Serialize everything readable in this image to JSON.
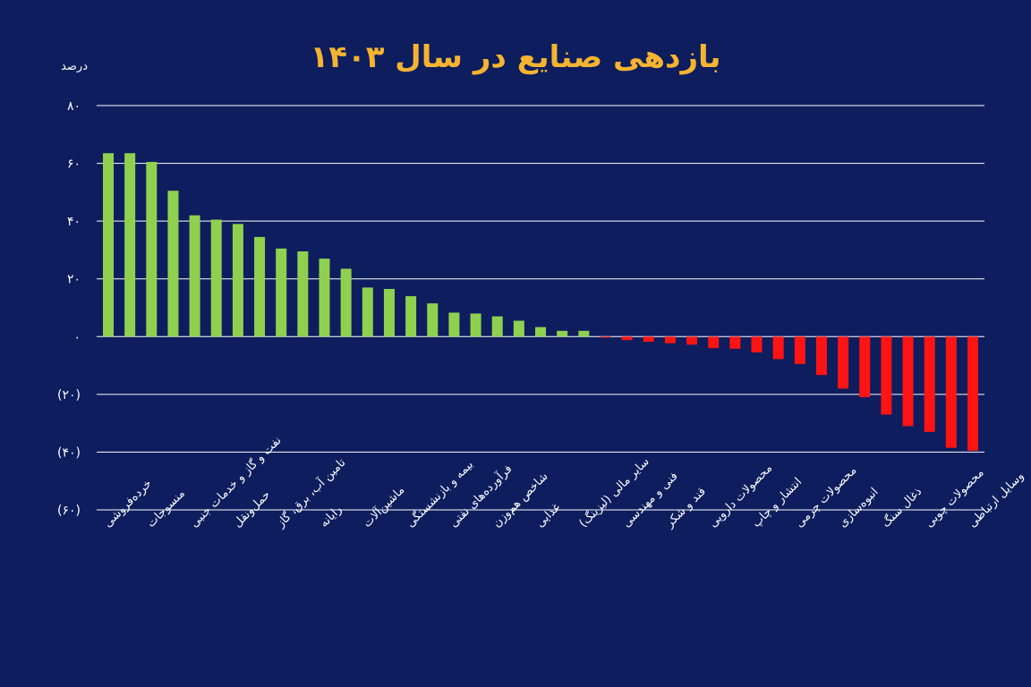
{
  "colors": {
    "background": "#0d1d5e",
    "title": "#f5b430",
    "positive_bar": "#8fd14f",
    "negative_bar": "#ff1414",
    "grid": "#ffffff",
    "text": "#ffffff"
  },
  "chart_data": {
    "type": "bar",
    "title": "بازدهی صنایع در سال ۱۴۰۳",
    "ylabel": "درصد",
    "xlabel": "",
    "ylim": [
      -60,
      80
    ],
    "grid": true,
    "ytick_values": [
      80,
      60,
      40,
      20,
      0,
      -20,
      -40,
      -60
    ],
    "ytick_labels": [
      "۸۰",
      "۶۰",
      "۴۰",
      "۲۰",
      "۰",
      "(۲۰)",
      "(۴۰)",
      "(۶۰)"
    ],
    "labeled_categories": [
      "خرده‌فروشی",
      "منسوجات",
      "نفت و گاز و خدمات جنبی",
      "حمل‌ونقل",
      "تامین آب، برق، گاز",
      "رایانه",
      "ماشین‌آلات",
      "بیمه و بازنشستگی",
      "فرآورده‌های نفتی",
      "شاخص هم‌وزن",
      "غذایی",
      "سایر مالی (لیزینگ)",
      "فنی و مهندسی",
      "قند و شکر",
      "محصولات دارویی",
      "انتشار و چاپ",
      "محصولات چرمی",
      "انبوه‌سازی",
      "ذغال سنگ",
      "محصولات چوبی",
      "وسایل ارتباطی"
    ],
    "label_positions": [
      0,
      2,
      4,
      6,
      8,
      10,
      12,
      14,
      16,
      18,
      20,
      22,
      24,
      26,
      28,
      30,
      32,
      34,
      36,
      38,
      40
    ],
    "values": [
      63.5,
      63.5,
      60.5,
      50.5,
      42,
      40.5,
      39,
      34.5,
      30.5,
      29.5,
      27,
      23.5,
      17,
      16.5,
      14,
      11.5,
      8.3,
      8,
      7,
      5.5,
      3.3,
      2,
      2,
      -0.3,
      -1.2,
      -1.8,
      -2.3,
      -2.8,
      -4,
      -4.2,
      -5.5,
      -7.8,
      -9.5,
      -13.3,
      -18,
      -21,
      -27,
      -31,
      -33,
      -38.5,
      -39.5
    ]
  }
}
